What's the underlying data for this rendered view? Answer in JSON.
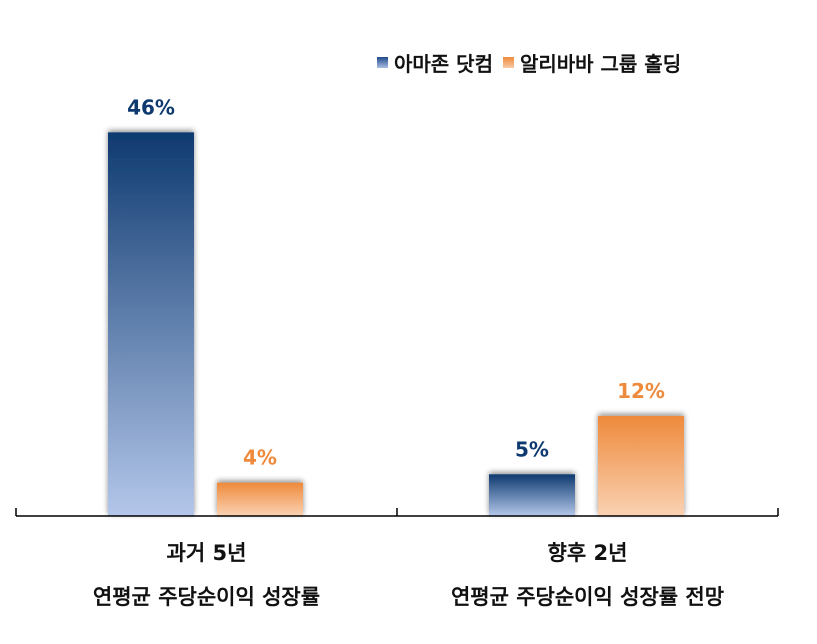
{
  "chart_data": {
    "type": "bar",
    "categories": [
      {
        "line1": "과거 5년",
        "line2": "연평균 주당순이익 성장률"
      },
      {
        "line1": "향후 2년",
        "line2": "연평균 주당순이익 성장률 전망"
      }
    ],
    "series": [
      {
        "name": "아마존 닷컴",
        "values": [
          46,
          5
        ],
        "labels": [
          "46%",
          "5%"
        ],
        "color": "#0e3a70",
        "label_color": "#0e3a70"
      },
      {
        "name": "알리바바 그룹 홀딩",
        "values": [
          4,
          12
        ],
        "labels": [
          "4%",
          "12%"
        ],
        "color": "#ee8a3c",
        "label_color": "#ee8a3c"
      }
    ],
    "ylim": [
      0,
      50
    ],
    "grid": false,
    "legend_position": "top-right",
    "title": "",
    "xlabel": "",
    "ylabel": ""
  }
}
